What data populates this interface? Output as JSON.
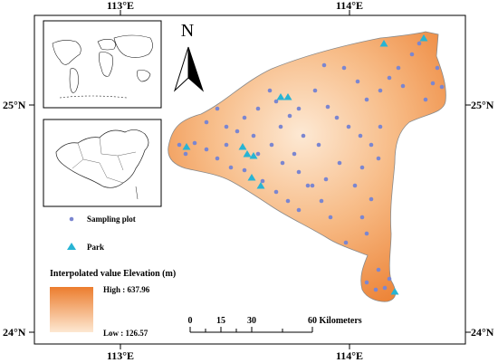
{
  "graticule": {
    "top_labels": [
      "113°E",
      "114°E"
    ],
    "bottom_labels": [
      "113°E",
      "114°E"
    ],
    "left_labels": [
      "25°N",
      "24°N"
    ],
    "right_labels": [
      "25°N",
      "24°N"
    ]
  },
  "north_arrow": {
    "label": "N"
  },
  "legend": {
    "sampling_plot_label": "Sampling plot",
    "park_label": "Park",
    "elevation_title": "Interpolated value Elevation (m)",
    "high_label": "High : 637.96",
    "low_label": "Low : 126.57",
    "high_value": 637.96,
    "low_value": 126.57
  },
  "scale_bar": {
    "ticks": [
      "0",
      "15",
      "30",
      "60 Kilometers"
    ]
  },
  "colors": {
    "high": "#ec7d2e",
    "low": "#fce6cf",
    "sampling_plot": "#7b86d0",
    "park": "#27b4d4"
  },
  "insets": [
    {
      "name": "world-map-inset",
      "content": "world map outline"
    },
    {
      "name": "china-map-inset",
      "content": "china map outline"
    }
  ]
}
